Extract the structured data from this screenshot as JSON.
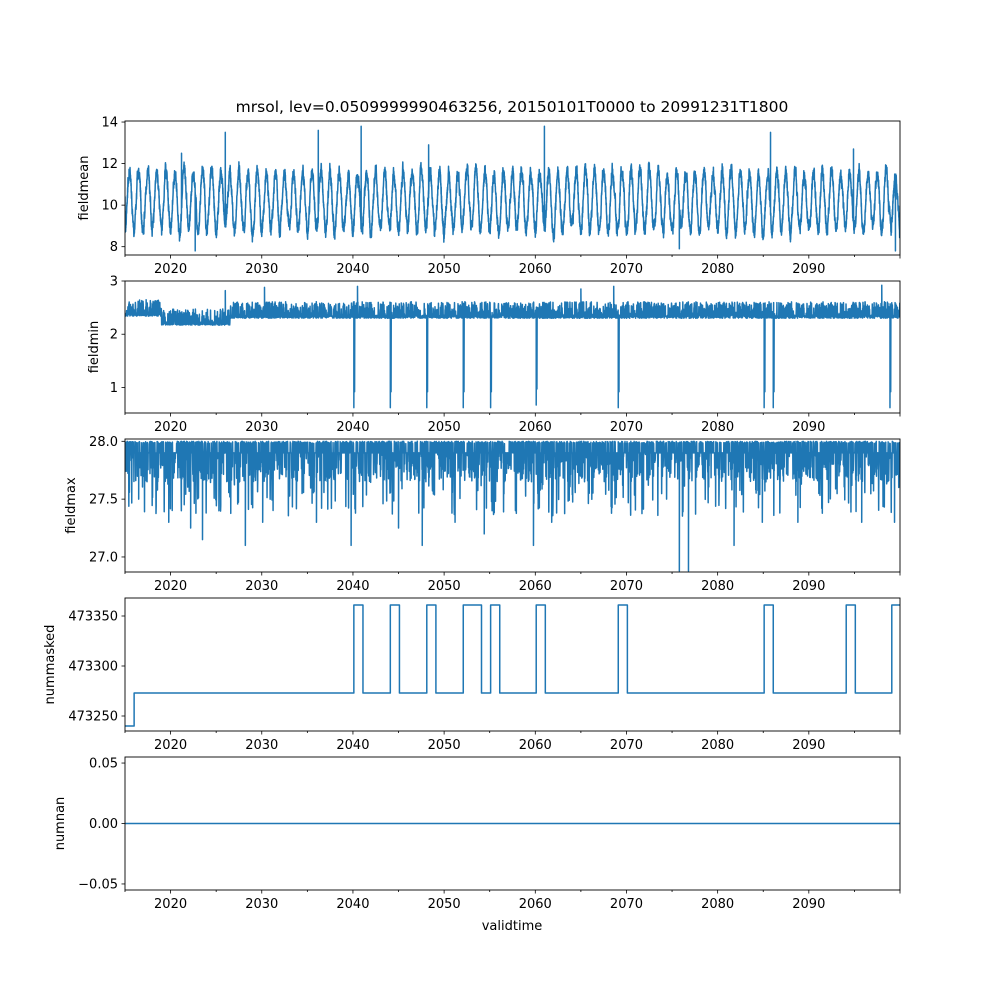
{
  "chart_data": {
    "type": "line",
    "title": "mrsol, lev=0.0509999990463256, 20150101T0000 to 20991231T1800",
    "xlabel": "validtime",
    "xlim": [
      2015.0,
      2100.0
    ],
    "x_ticks": [
      2020,
      2030,
      2040,
      2050,
      2060,
      2070,
      2080,
      2090
    ],
    "line_color": "#1f77b4",
    "grid": false,
    "panels": [
      {
        "id": "fieldmean",
        "ylabel": "fieldmean",
        "ylim": [
          7.6,
          14.05
        ],
        "yticks": [
          8,
          10,
          12,
          14
        ],
        "ytick_labels": [
          "8",
          "10",
          "12",
          "14"
        ],
        "series": {
          "kind": "seasonal",
          "base": 10.2,
          "amp": 1.4,
          "noise": 0.45,
          "min": 7.9,
          "max": 13.8,
          "x": [
            2015.0,
            2021.2,
            2022.7,
            2026.0,
            2036.2,
            2040.9,
            2048.3,
            2061.0,
            2075.8,
            2085.8,
            2094.9,
            2099.5
          ],
          "y": [
            10.4,
            12.5,
            7.8,
            13.5,
            13.6,
            13.8,
            12.9,
            13.8,
            7.9,
            13.5,
            12.7,
            7.8
          ]
        }
      },
      {
        "id": "fieldmin",
        "ylabel": "fieldmin",
        "ylim": [
          0.52,
          3.0
        ],
        "yticks": [
          1,
          2,
          3
        ],
        "ytick_labels": [
          "1",
          "2",
          "3"
        ],
        "series": {
          "kind": "baseline_spikes",
          "base": 2.38,
          "jitter_up": 0.25,
          "jitter_down": 0.06,
          "segments": [
            {
              "x": [
                2015.0,
                2019.0
              ],
              "base": 2.4
            },
            {
              "x": [
                2019.0,
                2026.5
              ],
              "base": 2.23
            },
            {
              "x": [
                2026.5,
                2100.0
              ],
              "base": 2.36
            }
          ],
          "dips": [
            {
              "x": 2040.1,
              "y": 0.62
            },
            {
              "x": 2044.1,
              "y": 0.62
            },
            {
              "x": 2048.1,
              "y": 0.62
            },
            {
              "x": 2052.1,
              "y": 0.62
            },
            {
              "x": 2055.1,
              "y": 0.62
            },
            {
              "x": 2060.1,
              "y": 0.67
            },
            {
              "x": 2069.1,
              "y": 0.62
            },
            {
              "x": 2085.1,
              "y": 0.62
            },
            {
              "x": 2086.1,
              "y": 0.62
            },
            {
              "x": 2098.9,
              "y": 0.62
            }
          ],
          "peaks": [
            {
              "x": 2026.0,
              "y": 2.82
            },
            {
              "x": 2030.3,
              "y": 2.88
            },
            {
              "x": 2040.5,
              "y": 2.9
            },
            {
              "x": 2065.0,
              "y": 2.85
            },
            {
              "x": 2068.6,
              "y": 2.9
            },
            {
              "x": 2098.0,
              "y": 2.92
            }
          ]
        }
      },
      {
        "id": "fieldmax",
        "ylabel": "fieldmax",
        "ylim": [
          26.87,
          28.02
        ],
        "yticks": [
          27.0,
          27.5,
          28.0
        ],
        "ytick_labels": [
          "27.0",
          "27.5",
          "28.0"
        ],
        "series": {
          "kind": "ceiling_dips",
          "base": 27.9,
          "ceiling": 28.0,
          "dips": [
            {
              "x": 2016.5,
              "y": 27.5
            },
            {
              "x": 2019.8,
              "y": 27.3
            },
            {
              "x": 2022.2,
              "y": 27.25
            },
            {
              "x": 2023.5,
              "y": 27.15
            },
            {
              "x": 2025.3,
              "y": 27.4
            },
            {
              "x": 2028.2,
              "y": 27.1
            },
            {
              "x": 2030.1,
              "y": 27.3
            },
            {
              "x": 2036.0,
              "y": 27.3
            },
            {
              "x": 2039.8,
              "y": 27.1
            },
            {
              "x": 2045.0,
              "y": 27.25
            },
            {
              "x": 2047.6,
              "y": 27.1
            },
            {
              "x": 2051.2,
              "y": 27.3
            },
            {
              "x": 2054.4,
              "y": 27.2
            },
            {
              "x": 2059.8,
              "y": 27.1
            },
            {
              "x": 2061.8,
              "y": 27.3
            },
            {
              "x": 2075.8,
              "y": 26.88
            },
            {
              "x": 2076.8,
              "y": 26.88
            },
            {
              "x": 2081.8,
              "y": 27.1
            },
            {
              "x": 2084.9,
              "y": 27.3
            },
            {
              "x": 2088.8,
              "y": 27.3
            },
            {
              "x": 2095.8,
              "y": 27.3
            },
            {
              "x": 2099.4,
              "y": 27.3
            }
          ]
        }
      },
      {
        "id": "nummasked",
        "ylabel": "nummasked",
        "ylim": [
          473235,
          473368
        ],
        "yticks": [
          473250,
          473300,
          473350
        ],
        "ytick_labels": [
          "473250",
          "473300",
          "473350"
        ],
        "series": {
          "kind": "step",
          "x": [
            2015.0,
            2016.0,
            2040.1,
            2041.1,
            2044.1,
            2045.1,
            2048.1,
            2049.1,
            2052.1,
            2054.1,
            2055.1,
            2056.1,
            2060.1,
            2061.1,
            2069.1,
            2070.1,
            2085.1,
            2086.1,
            2094.1,
            2095.1,
            2099.1,
            2100.0
          ],
          "y": [
            473240,
            473273,
            473361,
            473273,
            473361,
            473273,
            473361,
            473273,
            473361,
            473273,
            473361,
            473273,
            473361,
            473273,
            473361,
            473273,
            473361,
            473273,
            473361,
            473273,
            473361,
            473361
          ]
        }
      },
      {
        "id": "numnan",
        "ylabel": "numnan",
        "ylim": [
          -0.055,
          0.055
        ],
        "yticks": [
          -0.05,
          0.0,
          0.05
        ],
        "ytick_labels": [
          "−0.05",
          "0.00",
          "0.05"
        ],
        "series": {
          "kind": "points",
          "x": [
            2015.0,
            2100.0
          ],
          "y": [
            0.0,
            0.0
          ]
        }
      }
    ]
  }
}
